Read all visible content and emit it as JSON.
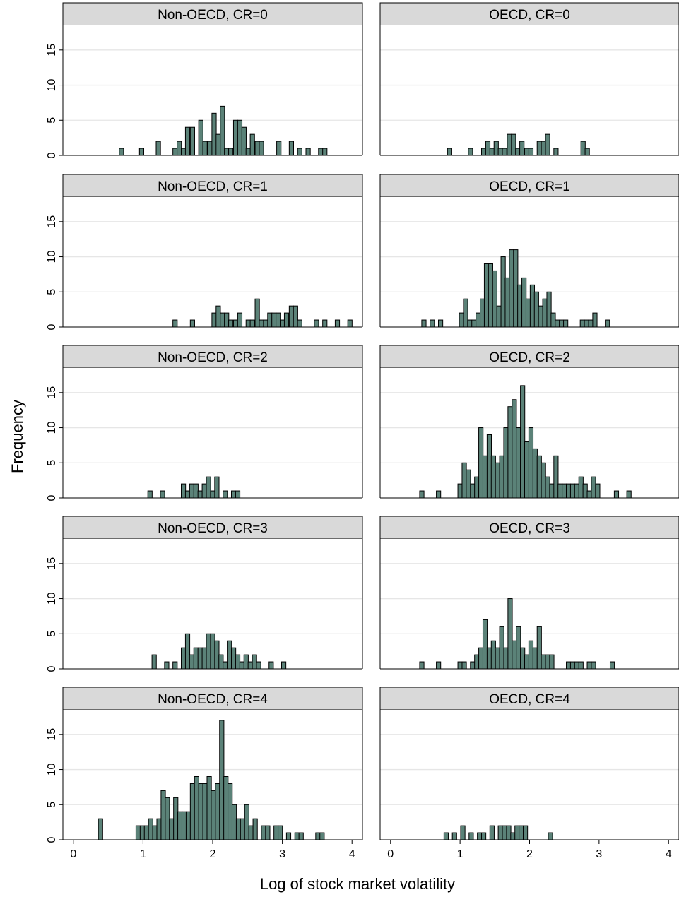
{
  "chart_data": {
    "type": "bar",
    "layout": "faceted histogram grid, 5 rows by 2 columns",
    "xlabel": "Log of stock market volatility",
    "ylabel": "Frequency",
    "xlim": [
      -0.15,
      4.15
    ],
    "ylim": [
      0,
      18.5
    ],
    "xticks": [
      "0",
      "1",
      "2",
      "3",
      "4"
    ],
    "yticks": [
      "0",
      "5",
      "10",
      "15"
    ],
    "bin_width": 0.0625,
    "grid": true,
    "colors": {
      "bar_fill": "#5b8278",
      "bar_stroke": "#000000",
      "strip_fill": "#d9d9d9",
      "grid": "#e6e6e6"
    },
    "panels": [
      {
        "label": "Non-OECD, CR=0",
        "bars": [
          [
            0.69,
            1
          ],
          [
            0.98,
            1
          ],
          [
            1.22,
            2
          ],
          [
            1.46,
            1
          ],
          [
            1.52,
            2
          ],
          [
            1.58,
            1
          ],
          [
            1.64,
            4
          ],
          [
            1.71,
            4
          ],
          [
            1.83,
            5
          ],
          [
            1.89,
            2
          ],
          [
            1.96,
            2
          ],
          [
            2.02,
            6
          ],
          [
            2.08,
            3
          ],
          [
            2.14,
            7
          ],
          [
            2.2,
            1
          ],
          [
            2.26,
            1
          ],
          [
            2.33,
            5
          ],
          [
            2.39,
            5
          ],
          [
            2.45,
            4
          ],
          [
            2.51,
            1
          ],
          [
            2.57,
            3
          ],
          [
            2.64,
            2
          ],
          [
            2.7,
            2
          ],
          [
            2.95,
            2
          ],
          [
            3.13,
            2
          ],
          [
            3.25,
            1
          ],
          [
            3.37,
            1
          ],
          [
            3.55,
            1
          ],
          [
            3.61,
            1
          ]
        ]
      },
      {
        "label": "OECD, CR=0",
        "bars": [
          [
            0.85,
            1
          ],
          [
            1.15,
            1
          ],
          [
            1.34,
            1
          ],
          [
            1.4,
            2
          ],
          [
            1.46,
            1
          ],
          [
            1.52,
            2
          ],
          [
            1.58,
            1
          ],
          [
            1.64,
            1
          ],
          [
            1.71,
            3
          ],
          [
            1.77,
            3
          ],
          [
            1.83,
            1
          ],
          [
            1.89,
            2
          ],
          [
            1.96,
            1
          ],
          [
            2.02,
            1
          ],
          [
            2.14,
            2
          ],
          [
            2.2,
            2
          ],
          [
            2.26,
            3
          ],
          [
            2.38,
            1
          ],
          [
            2.77,
            2
          ],
          [
            2.83,
            1
          ]
        ]
      },
      {
        "label": "Non-OECD, CR=1",
        "bars": [
          [
            1.46,
            1
          ],
          [
            1.71,
            1
          ],
          [
            2.02,
            2
          ],
          [
            2.08,
            3
          ],
          [
            2.14,
            2
          ],
          [
            2.2,
            2
          ],
          [
            2.26,
            1
          ],
          [
            2.33,
            1
          ],
          [
            2.39,
            2
          ],
          [
            2.51,
            1
          ],
          [
            2.57,
            1
          ],
          [
            2.64,
            4
          ],
          [
            2.7,
            1
          ],
          [
            2.76,
            1
          ],
          [
            2.82,
            2
          ],
          [
            2.88,
            2
          ],
          [
            2.94,
            2
          ],
          [
            3.0,
            1
          ],
          [
            3.06,
            2
          ],
          [
            3.13,
            3
          ],
          [
            3.19,
            3
          ],
          [
            3.25,
            1
          ],
          [
            3.49,
            1
          ],
          [
            3.61,
            1
          ],
          [
            3.79,
            1
          ],
          [
            3.97,
            1
          ]
        ]
      },
      {
        "label": "OECD, CR=1",
        "bars": [
          [
            0.48,
            1
          ],
          [
            0.6,
            1
          ],
          [
            0.72,
            1
          ],
          [
            1.02,
            2
          ],
          [
            1.08,
            4
          ],
          [
            1.14,
            1
          ],
          [
            1.2,
            1
          ],
          [
            1.26,
            2
          ],
          [
            1.32,
            4
          ],
          [
            1.38,
            9
          ],
          [
            1.44,
            9
          ],
          [
            1.5,
            8
          ],
          [
            1.56,
            3
          ],
          [
            1.62,
            10
          ],
          [
            1.68,
            7
          ],
          [
            1.74,
            11
          ],
          [
            1.8,
            11
          ],
          [
            1.86,
            6
          ],
          [
            1.92,
            7
          ],
          [
            1.98,
            4
          ],
          [
            2.04,
            6
          ],
          [
            2.1,
            5
          ],
          [
            2.16,
            3
          ],
          [
            2.22,
            4
          ],
          [
            2.28,
            5
          ],
          [
            2.34,
            2
          ],
          [
            2.4,
            1
          ],
          [
            2.46,
            1
          ],
          [
            2.52,
            1
          ],
          [
            2.76,
            1
          ],
          [
            2.82,
            1
          ],
          [
            2.88,
            1
          ],
          [
            2.94,
            2
          ],
          [
            3.12,
            1
          ]
        ]
      },
      {
        "label": "Non-OECD, CR=2",
        "bars": [
          [
            1.1,
            1
          ],
          [
            1.28,
            1
          ],
          [
            1.58,
            2
          ],
          [
            1.64,
            1
          ],
          [
            1.7,
            2
          ],
          [
            1.76,
            2
          ],
          [
            1.82,
            1
          ],
          [
            1.88,
            2
          ],
          [
            1.94,
            3
          ],
          [
            2.0,
            1
          ],
          [
            2.06,
            3
          ],
          [
            2.18,
            1
          ],
          [
            2.3,
            1
          ],
          [
            2.36,
            1
          ]
        ]
      },
      {
        "label": "OECD, CR=2",
        "bars": [
          [
            0.45,
            1
          ],
          [
            0.69,
            1
          ],
          [
            1.0,
            2
          ],
          [
            1.06,
            5
          ],
          [
            1.12,
            4
          ],
          [
            1.18,
            2
          ],
          [
            1.24,
            3
          ],
          [
            1.3,
            10
          ],
          [
            1.36,
            6
          ],
          [
            1.42,
            9
          ],
          [
            1.48,
            6
          ],
          [
            1.54,
            5
          ],
          [
            1.6,
            6
          ],
          [
            1.66,
            10
          ],
          [
            1.72,
            13
          ],
          [
            1.78,
            14
          ],
          [
            1.84,
            10
          ],
          [
            1.9,
            16
          ],
          [
            1.96,
            8
          ],
          [
            2.02,
            10
          ],
          [
            2.08,
            7
          ],
          [
            2.14,
            6
          ],
          [
            2.2,
            5
          ],
          [
            2.26,
            3
          ],
          [
            2.32,
            2
          ],
          [
            2.38,
            6
          ],
          [
            2.44,
            2
          ],
          [
            2.5,
            2
          ],
          [
            2.56,
            2
          ],
          [
            2.62,
            2
          ],
          [
            2.68,
            2
          ],
          [
            2.74,
            3
          ],
          [
            2.8,
            2
          ],
          [
            2.86,
            1
          ],
          [
            2.92,
            3
          ],
          [
            2.98,
            2
          ],
          [
            3.25,
            1
          ],
          [
            3.43,
            1
          ]
        ]
      },
      {
        "label": "Non-OECD, CR=3",
        "bars": [
          [
            1.16,
            2
          ],
          [
            1.34,
            1
          ],
          [
            1.46,
            1
          ],
          [
            1.58,
            3
          ],
          [
            1.64,
            5
          ],
          [
            1.7,
            2
          ],
          [
            1.76,
            3
          ],
          [
            1.82,
            3
          ],
          [
            1.88,
            3
          ],
          [
            1.94,
            5
          ],
          [
            2.0,
            5
          ],
          [
            2.06,
            4
          ],
          [
            2.12,
            2
          ],
          [
            2.18,
            1
          ],
          [
            2.24,
            4
          ],
          [
            2.3,
            3
          ],
          [
            2.36,
            2
          ],
          [
            2.42,
            1
          ],
          [
            2.48,
            2
          ],
          [
            2.54,
            1
          ],
          [
            2.6,
            2
          ],
          [
            2.66,
            1
          ],
          [
            2.84,
            1
          ],
          [
            3.02,
            1
          ]
        ]
      },
      {
        "label": "OECD, CR=3",
        "bars": [
          [
            0.45,
            1
          ],
          [
            0.69,
            1
          ],
          [
            1.0,
            1
          ],
          [
            1.06,
            1
          ],
          [
            1.18,
            1
          ],
          [
            1.24,
            2
          ],
          [
            1.3,
            3
          ],
          [
            1.36,
            7
          ],
          [
            1.42,
            3
          ],
          [
            1.48,
            4
          ],
          [
            1.54,
            3
          ],
          [
            1.6,
            6
          ],
          [
            1.66,
            3
          ],
          [
            1.72,
            10
          ],
          [
            1.78,
            4
          ],
          [
            1.84,
            6
          ],
          [
            1.9,
            3
          ],
          [
            1.96,
            2
          ],
          [
            2.02,
            4
          ],
          [
            2.08,
            3
          ],
          [
            2.14,
            6
          ],
          [
            2.2,
            2
          ],
          [
            2.26,
            2
          ],
          [
            2.32,
            2
          ],
          [
            2.56,
            1
          ],
          [
            2.62,
            1
          ],
          [
            2.68,
            1
          ],
          [
            2.74,
            1
          ],
          [
            2.86,
            1
          ],
          [
            2.92,
            1
          ],
          [
            3.19,
            1
          ]
        ]
      },
      {
        "label": "Non-OECD, CR=4",
        "bars": [
          [
            0.39,
            3
          ],
          [
            0.93,
            2
          ],
          [
            0.99,
            2
          ],
          [
            1.05,
            2
          ],
          [
            1.11,
            3
          ],
          [
            1.17,
            2
          ],
          [
            1.23,
            3
          ],
          [
            1.29,
            7
          ],
          [
            1.35,
            6
          ],
          [
            1.41,
            3
          ],
          [
            1.47,
            6
          ],
          [
            1.53,
            4
          ],
          [
            1.59,
            4
          ],
          [
            1.65,
            4
          ],
          [
            1.71,
            8
          ],
          [
            1.77,
            9
          ],
          [
            1.83,
            8
          ],
          [
            1.89,
            8
          ],
          [
            1.95,
            9
          ],
          [
            2.01,
            7
          ],
          [
            2.07,
            8
          ],
          [
            2.13,
            17
          ],
          [
            2.19,
            9
          ],
          [
            2.25,
            8
          ],
          [
            2.31,
            5
          ],
          [
            2.37,
            3
          ],
          [
            2.43,
            3
          ],
          [
            2.49,
            5
          ],
          [
            2.55,
            2
          ],
          [
            2.61,
            3
          ],
          [
            2.73,
            2
          ],
          [
            2.79,
            2
          ],
          [
            2.91,
            2
          ],
          [
            2.97,
            2
          ],
          [
            3.09,
            1
          ],
          [
            3.21,
            1
          ],
          [
            3.27,
            1
          ],
          [
            3.51,
            1
          ],
          [
            3.57,
            1
          ]
        ]
      },
      {
        "label": "OECD, CR=4",
        "bars": [
          [
            0.8,
            1
          ],
          [
            0.92,
            1
          ],
          [
            1.04,
            2
          ],
          [
            1.16,
            1
          ],
          [
            1.28,
            1
          ],
          [
            1.34,
            1
          ],
          [
            1.46,
            2
          ],
          [
            1.58,
            2
          ],
          [
            1.64,
            2
          ],
          [
            1.7,
            2
          ],
          [
            1.76,
            1
          ],
          [
            1.82,
            2
          ],
          [
            1.88,
            2
          ],
          [
            1.94,
            2
          ],
          [
            2.3,
            1
          ]
        ]
      }
    ]
  }
}
